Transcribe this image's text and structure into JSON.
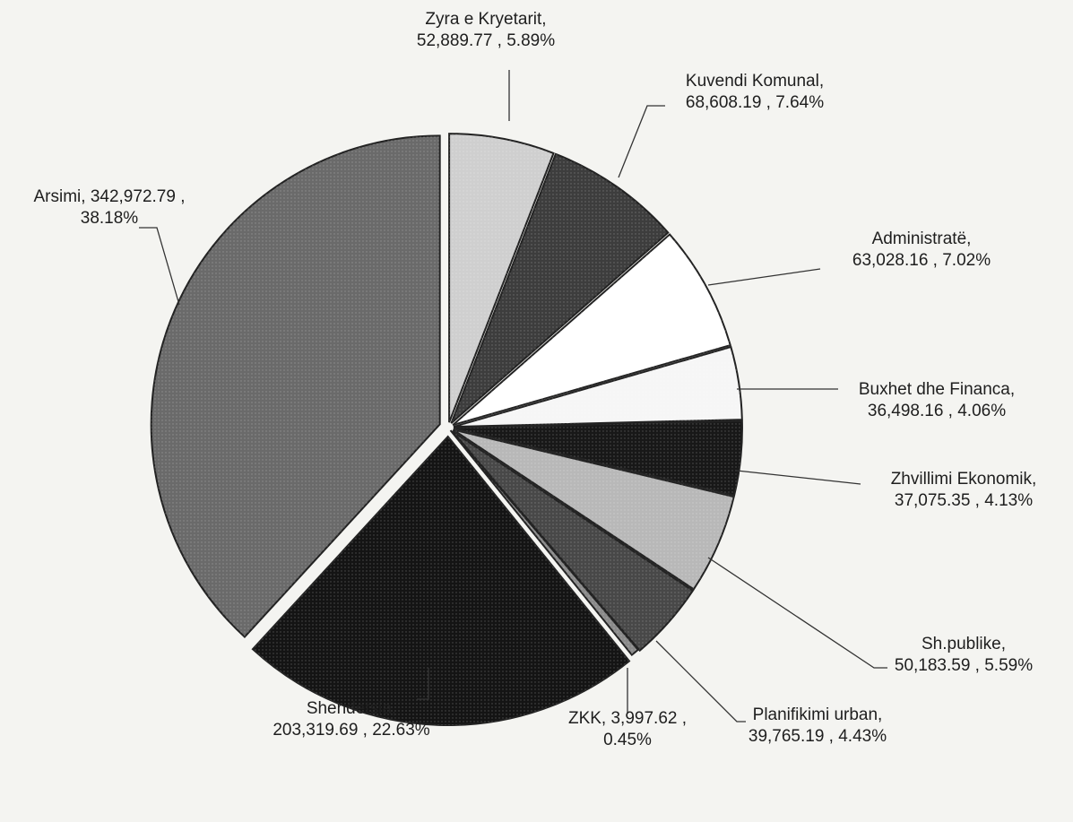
{
  "chart_data": {
    "type": "pie",
    "title": "",
    "slices": [
      {
        "name": "Zyra e Kryetarit",
        "value": 52889.77,
        "value_label": "52,889.77",
        "percent_label": "5.89%",
        "label_line1": "Zyra e Kryetarit,",
        "label_line2": "52,889.77 , 5.89%",
        "fill": "#cfcfcf"
      },
      {
        "name": "Kuvendi Komunal",
        "value": 68608.19,
        "value_label": "68,608.19",
        "percent_label": "7.64%",
        "label_line1": "Kuvendi Komunal,",
        "label_line2": "68,608.19 , 7.64%",
        "fill": "#3d3d3d"
      },
      {
        "name": "Administratë",
        "value": 63028.16,
        "value_label": "63,028.16",
        "percent_label": "7.02%",
        "label_line1": "Administratë,",
        "label_line2": "63,028.16 , 7.02%",
        "fill": "#ffffff"
      },
      {
        "name": "Buxhet dhe Financa",
        "value": 36498.16,
        "value_label": "36,498.16",
        "percent_label": "4.06%",
        "label_line1": "Buxhet dhe Financa,",
        "label_line2": "36,498.16 , 4.06%",
        "fill": "#f6f6f6"
      },
      {
        "name": "Zhvillimi Ekonomik",
        "value": 37075.35,
        "value_label": "37,075.35",
        "percent_label": "4.13%",
        "label_line1": "Zhvillimi Ekonomik,",
        "label_line2": "37,075.35 , 4.13%",
        "fill": "#181818"
      },
      {
        "name": "Sh.publike",
        "value": 50183.59,
        "value_label": "50,183.59",
        "percent_label": "5.59%",
        "label_line1": "Sh.publike,",
        "label_line2": "50,183.59 , 5.59%",
        "fill": "#b8b8b8"
      },
      {
        "name": "Planifikimi urban",
        "value": 39765.19,
        "value_label": "39,765.19",
        "percent_label": "4.43%",
        "label_line1": "Planifikimi urban,",
        "label_line2": "39,765.19 , 4.43%",
        "fill": "#484848"
      },
      {
        "name": "ZKK",
        "value": 3997.62,
        "value_label": "3,997.62",
        "percent_label": "0.45%",
        "label_line1": "ZKK,  3,997.62 ,",
        "label_line2": "0.45%",
        "fill": "#8a8a8a"
      },
      {
        "name": "Shendetsia",
        "value": 203319.69,
        "value_label": "203,319.69",
        "percent_label": "22.63%",
        "label_line1": "Shendetsia,",
        "label_line2": "203,319.69 , 22.63%",
        "fill": "#141414"
      },
      {
        "name": "Arsimi",
        "value": 342972.79,
        "value_label": "342,972.79",
        "percent_label": "38.18%",
        "label_line1": "Arsimi,  342,972.79 ,",
        "label_line2": "38.18%",
        "fill": "#6a6a6a"
      }
    ],
    "start_angle_deg": 0,
    "direction": "clockwise",
    "legend": "none"
  }
}
